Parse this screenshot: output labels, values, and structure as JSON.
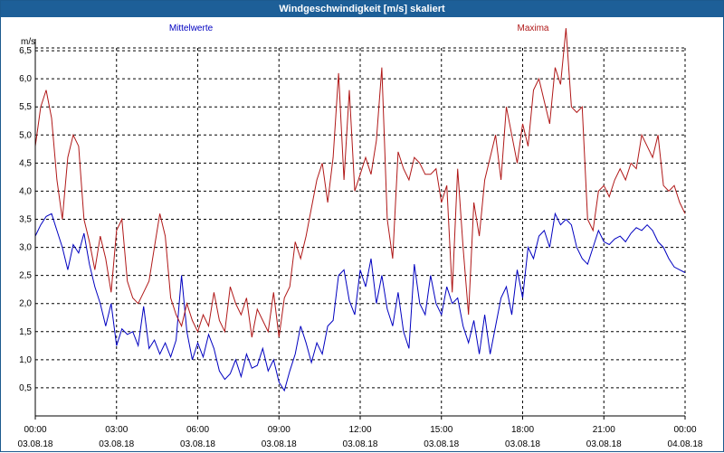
{
  "window": {
    "title": "Windgeschwindigkeit [m/s] skaliert"
  },
  "chart_data": {
    "type": "line",
    "title": "Windgeschwindigkeit [m/s] skaliert",
    "ylabel": "m/s",
    "xlabel": "",
    "xlim": [
      0,
      24
    ],
    "ylim": [
      0,
      7.0
    ],
    "grid": true,
    "legend_position": "top",
    "y_ticks": [
      "0,5",
      "1,0",
      "1,5",
      "2,0",
      "2,5",
      "3,0",
      "3,5",
      "4,0",
      "4,5",
      "5,0",
      "5,5",
      "6,0",
      "6,5"
    ],
    "x_ticks": [
      {
        "time": "00:00",
        "date": "03.08.18"
      },
      {
        "time": "03:00",
        "date": "03.08.18"
      },
      {
        "time": "06:00",
        "date": "03.08.18"
      },
      {
        "time": "09:00",
        "date": "03.08.18"
      },
      {
        "time": "12:00",
        "date": "03.08.18"
      },
      {
        "time": "15:00",
        "date": "03.08.18"
      },
      {
        "time": "18:00",
        "date": "03.08.18"
      },
      {
        "time": "21:00",
        "date": "03.08.18"
      },
      {
        "time": "00:00",
        "date": "04.08.18"
      }
    ],
    "series": [
      {
        "name": "Mittelwerte",
        "color": "#0000c0",
        "x": [
          0.0,
          0.2,
          0.4,
          0.6,
          0.8,
          1.0,
          1.2,
          1.4,
          1.6,
          1.8,
          2.0,
          2.2,
          2.4,
          2.6,
          2.8,
          3.0,
          3.2,
          3.4,
          3.6,
          3.8,
          4.0,
          4.2,
          4.4,
          4.6,
          4.8,
          5.0,
          5.2,
          5.4,
          5.6,
          5.8,
          6.0,
          6.2,
          6.4,
          6.6,
          6.8,
          7.0,
          7.2,
          7.4,
          7.6,
          7.8,
          8.0,
          8.2,
          8.4,
          8.6,
          8.8,
          9.0,
          9.2,
          9.4,
          9.6,
          9.8,
          10.0,
          10.2,
          10.4,
          10.6,
          10.8,
          11.0,
          11.2,
          11.4,
          11.6,
          11.8,
          12.0,
          12.2,
          12.4,
          12.6,
          12.8,
          13.0,
          13.2,
          13.4,
          13.6,
          13.8,
          14.0,
          14.2,
          14.4,
          14.6,
          14.8,
          15.0,
          15.2,
          15.4,
          15.6,
          15.8,
          16.0,
          16.2,
          16.4,
          16.6,
          16.8,
          17.0,
          17.2,
          17.4,
          17.6,
          17.8,
          18.0,
          18.2,
          18.4,
          18.6,
          18.8,
          19.0,
          19.2,
          19.4,
          19.6,
          19.8,
          20.0,
          20.2,
          20.4,
          20.6,
          20.8,
          21.0,
          21.2,
          21.4,
          21.6,
          21.8,
          22.0,
          22.2,
          22.4,
          22.6,
          22.8,
          23.0,
          23.2,
          23.4,
          23.6,
          23.8,
          24.0
        ],
        "y": [
          3.2,
          3.4,
          3.55,
          3.6,
          3.3,
          3.0,
          2.6,
          3.05,
          2.9,
          3.25,
          2.7,
          2.3,
          2.0,
          1.6,
          2.0,
          1.25,
          1.55,
          1.45,
          1.5,
          1.25,
          1.95,
          1.2,
          1.35,
          1.1,
          1.3,
          1.05,
          1.35,
          2.5,
          1.5,
          1.0,
          1.3,
          1.05,
          1.45,
          1.2,
          0.8,
          0.65,
          0.75,
          1.0,
          0.7,
          1.1,
          0.85,
          0.9,
          1.2,
          0.8,
          1.0,
          0.6,
          0.45,
          0.8,
          1.1,
          1.6,
          1.3,
          0.95,
          1.3,
          1.1,
          1.6,
          1.7,
          2.5,
          2.6,
          2.05,
          1.8,
          2.6,
          2.3,
          2.8,
          2.0,
          2.5,
          1.9,
          1.6,
          2.2,
          1.5,
          1.2,
          2.7,
          2.0,
          1.8,
          2.5,
          2.0,
          1.8,
          2.3,
          2.0,
          2.1,
          1.6,
          1.3,
          1.7,
          1.1,
          1.8,
          1.1,
          1.6,
          2.1,
          2.3,
          1.8,
          2.6,
          2.1,
          3.0,
          2.8,
          3.2,
          3.3,
          3.0,
          3.6,
          3.4,
          3.5,
          3.4,
          3.0,
          2.8,
          2.7,
          3.0,
          3.3,
          3.1,
          3.05,
          3.15,
          3.2,
          3.1,
          3.25,
          3.35,
          3.3,
          3.4,
          3.3,
          3.1,
          3.0,
          2.8,
          2.65,
          2.6,
          2.55
        ]
      },
      {
        "name": "Maxima",
        "color": "#b01818",
        "x": [
          0.0,
          0.2,
          0.4,
          0.6,
          0.8,
          1.0,
          1.2,
          1.4,
          1.6,
          1.8,
          2.0,
          2.2,
          2.4,
          2.6,
          2.8,
          3.0,
          3.2,
          3.4,
          3.6,
          3.8,
          4.0,
          4.2,
          4.4,
          4.6,
          4.8,
          5.0,
          5.2,
          5.4,
          5.6,
          5.8,
          6.0,
          6.2,
          6.4,
          6.6,
          6.8,
          7.0,
          7.2,
          7.4,
          7.6,
          7.8,
          8.0,
          8.2,
          8.4,
          8.6,
          8.8,
          9.0,
          9.2,
          9.4,
          9.6,
          9.8,
          10.0,
          10.2,
          10.4,
          10.6,
          10.8,
          11.0,
          11.2,
          11.4,
          11.6,
          11.8,
          12.0,
          12.2,
          12.4,
          12.6,
          12.8,
          13.0,
          13.2,
          13.4,
          13.6,
          13.8,
          14.0,
          14.2,
          14.4,
          14.6,
          14.8,
          15.0,
          15.2,
          15.4,
          15.6,
          15.8,
          16.0,
          16.2,
          16.4,
          16.6,
          16.8,
          17.0,
          17.2,
          17.4,
          17.6,
          17.8,
          18.0,
          18.2,
          18.4,
          18.6,
          18.8,
          19.0,
          19.2,
          19.4,
          19.6,
          19.8,
          20.0,
          20.2,
          20.4,
          20.6,
          20.8,
          21.0,
          21.2,
          21.4,
          21.6,
          21.8,
          22.0,
          22.2,
          22.4,
          22.6,
          22.8,
          23.0,
          23.2,
          23.4,
          23.6,
          23.8,
          24.0
        ],
        "y": [
          4.8,
          5.5,
          5.8,
          5.3,
          4.2,
          3.5,
          4.6,
          5.0,
          4.8,
          3.5,
          3.1,
          2.6,
          3.2,
          2.8,
          2.2,
          3.3,
          3.5,
          2.4,
          2.1,
          2.0,
          2.2,
          2.4,
          3.0,
          3.6,
          3.2,
          2.1,
          1.8,
          1.6,
          2.0,
          1.7,
          1.5,
          1.8,
          1.6,
          2.2,
          1.7,
          1.5,
          2.3,
          2.0,
          1.8,
          2.1,
          1.4,
          1.9,
          1.7,
          1.5,
          2.2,
          1.4,
          2.1,
          2.3,
          3.1,
          2.8,
          3.2,
          3.7,
          4.2,
          4.5,
          3.8,
          4.6,
          6.1,
          4.2,
          5.8,
          4.0,
          4.3,
          4.6,
          4.3,
          4.9,
          6.2,
          3.5,
          2.8,
          4.7,
          4.4,
          4.2,
          4.6,
          4.5,
          4.3,
          4.3,
          4.4,
          3.8,
          4.1,
          2.2,
          4.4,
          3.0,
          1.8,
          3.8,
          3.2,
          4.2,
          4.6,
          5.0,
          4.2,
          5.5,
          5.0,
          4.5,
          5.2,
          4.8,
          5.8,
          6.0,
          5.6,
          5.2,
          6.2,
          5.9,
          6.9,
          5.5,
          5.4,
          5.5,
          3.5,
          3.3,
          4.0,
          4.1,
          3.9,
          4.2,
          4.4,
          4.2,
          4.5,
          4.4,
          5.0,
          4.8,
          4.6,
          5.0,
          4.1,
          4.0,
          4.1,
          3.8,
          3.6
        ]
      }
    ]
  }
}
